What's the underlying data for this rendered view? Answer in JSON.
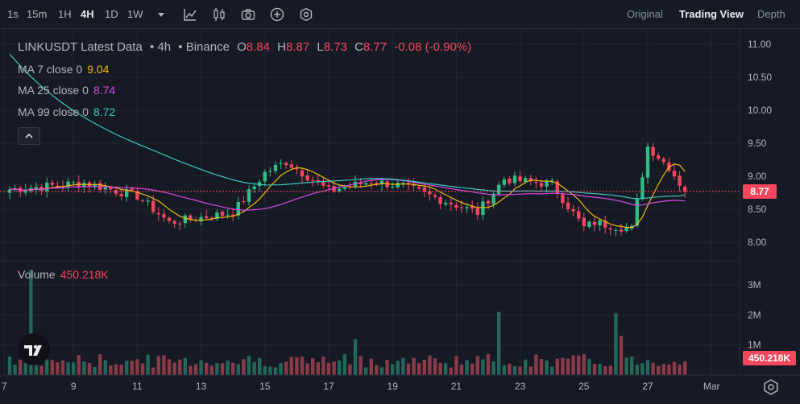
{
  "toolbar": {
    "timeframes": [
      "1s",
      "15m",
      "1H",
      "4H",
      "1D",
      "1W"
    ],
    "active_timeframe": "4H",
    "views": [
      "Original",
      "Trading View",
      "Depth"
    ],
    "active_view": "Trading View"
  },
  "legend": {
    "title": "LINKUSDT Latest Data",
    "interval": "4h",
    "exchange": "Binance",
    "separator": "•",
    "o_label": "O",
    "o_value": "8.84",
    "h_label": "H",
    "h_value": "8.87",
    "l_label": "L",
    "l_value": "8.73",
    "c_label": "C",
    "c_value": "8.77",
    "change": "-0.08 (-0.90%)",
    "ma7_label": "MA 7 close 0",
    "ma7_value": "9.04",
    "ma25_label": "MA 25 close 0",
    "ma25_value": "8.74",
    "ma99_label": "MA 99 close 0",
    "ma99_value": "8.72",
    "volume_label": "Volume",
    "volume_value": "450.218K"
  },
  "colors": {
    "background": "#161A25",
    "up": "#2EBD85",
    "down": "#F6465D",
    "ma7": "#F0B90B",
    "ma25": "#D74BE4",
    "ma99": "#3DC6C2",
    "up_vol": "#22685A",
    "down_vol": "#8A3A48"
  },
  "chart_data": {
    "type": "candlestick",
    "symbol": "LINKUSDT",
    "interval": "4h",
    "price_axis": {
      "ticks": [
        "11.00",
        "10.50",
        "10.00",
        "9.50",
        "9.00",
        "8.50",
        "8.00"
      ],
      "ylim": [
        7.72,
        11.18
      ]
    },
    "volume_axis": {
      "ticks": [
        "3M",
        "2M",
        "1M"
      ],
      "ylim": [
        0,
        3.8
      ]
    },
    "x_ticks": [
      "7",
      "9",
      "11",
      "13",
      "15",
      "17",
      "19",
      "21",
      "23",
      "25",
      "27",
      "Mar"
    ],
    "last_price": "8.77",
    "last_volume": "450.218K",
    "series": [
      {
        "name": "MA 7 close 0",
        "values_note": "computed from closes"
      },
      {
        "name": "MA 25 close 0"
      },
      {
        "name": "MA 99 close 0"
      }
    ],
    "anchors": {
      "x_bar_index": [
        0,
        14,
        24,
        30,
        42,
        48,
        52,
        60,
        68,
        74,
        82,
        88,
        93,
        97,
        102,
        108,
        110,
        117,
        120,
        124,
        127
      ],
      "close": [
        8.8,
        8.9,
        8.7,
        8.3,
        8.45,
        9.05,
        9.22,
        8.78,
        8.92,
        8.85,
        8.62,
        8.45,
        8.96,
        8.92,
        8.88,
        8.22,
        8.3,
        8.2,
        9.45,
        9.14,
        8.77
      ]
    },
    "bar_count": 128,
    "ma99_start": 10.85
  }
}
